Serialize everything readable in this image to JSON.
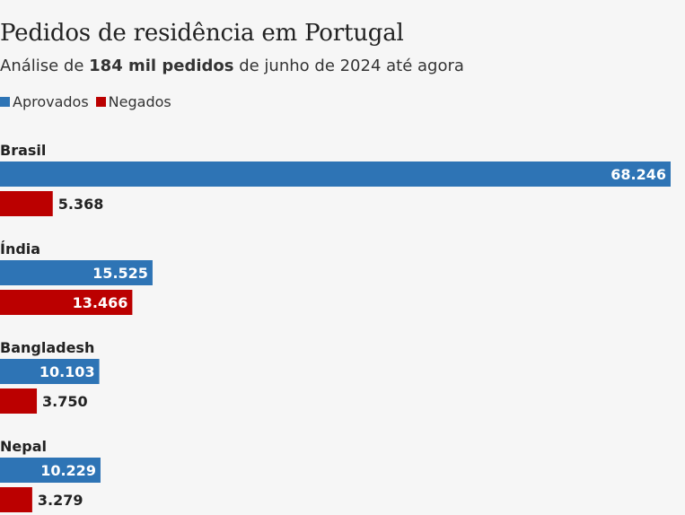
{
  "title": "Pedidos de residência em Portugal",
  "subtitle": {
    "prefix": "Análise de ",
    "bold": "184 mil pedidos",
    "suffix": " de junho de 2024 até agora"
  },
  "colors": {
    "approved": "#2e74b5",
    "denied": "#bb0000",
    "background": "#f6f6f6"
  },
  "chart_data": {
    "type": "bar",
    "orientation": "horizontal",
    "categories": [
      "Brasil",
      "Índia",
      "Bangladesh",
      "Nepal"
    ],
    "series": [
      {
        "name": "Aprovados",
        "values": [
          68246,
          15525,
          10103,
          10229
        ],
        "labels": [
          "68.246",
          "15.525",
          "10.103",
          "10.229"
        ]
      },
      {
        "name": "Negados",
        "values": [
          5368,
          13466,
          3750,
          3279
        ],
        "labels": [
          "5.368",
          "13.466",
          "3.750",
          "3.279"
        ]
      }
    ],
    "legend_position": "top-left",
    "grid": false
  }
}
